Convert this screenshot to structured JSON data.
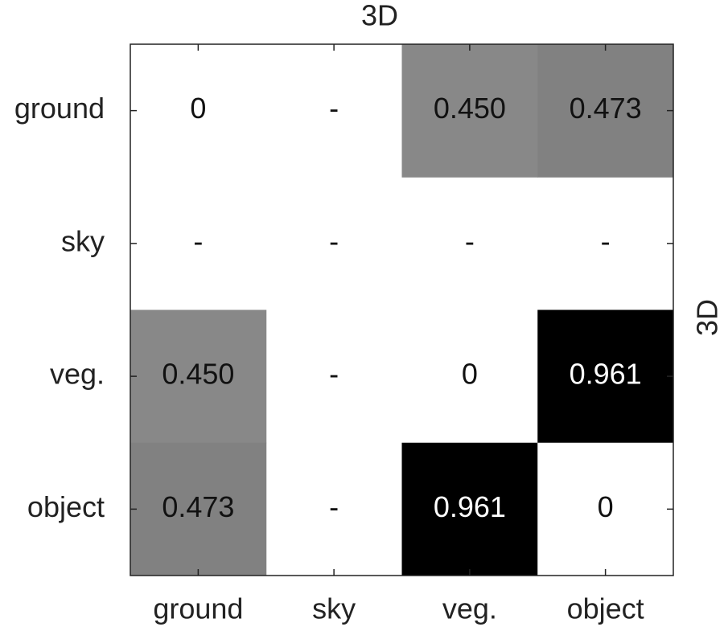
{
  "chart_data": {
    "type": "heatmap",
    "title": "3D",
    "ylabel_right": "3D",
    "x_categories": [
      "ground",
      "sky",
      "veg.",
      "object"
    ],
    "y_categories": [
      "ground",
      "sky",
      "veg.",
      "object"
    ],
    "values": [
      [
        0,
        null,
        0.45,
        0.473
      ],
      [
        null,
        null,
        null,
        null
      ],
      [
        0.45,
        null,
        0,
        0.961
      ],
      [
        0.473,
        null,
        0.961,
        0
      ]
    ],
    "value_labels": [
      [
        "0",
        "-",
        "0.450",
        "0.473"
      ],
      [
        "-",
        "-",
        "-",
        "-"
      ],
      [
        "0.450",
        "-",
        "0",
        "0.961"
      ],
      [
        "0.473",
        "-",
        "0.961",
        "0"
      ]
    ],
    "clim": [
      0,
      0.961
    ],
    "color_low": "#ffffff",
    "color_high": "#000000"
  }
}
